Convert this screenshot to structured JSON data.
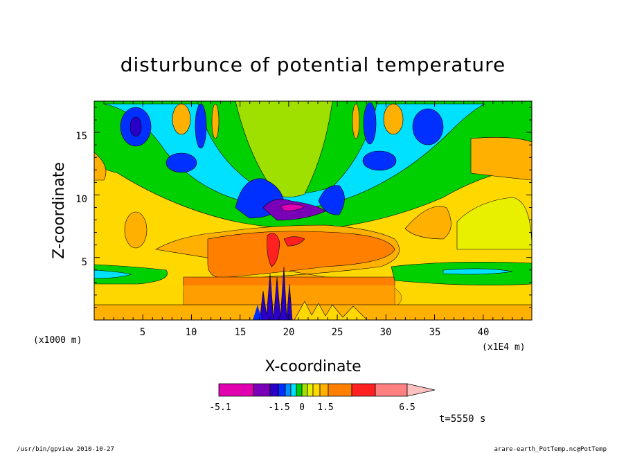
{
  "chart_data": {
    "type": "heatmap",
    "title": "disturbunce of potential temperature",
    "xlabel": "X-coordinate",
    "ylabel": "Z-coordinate",
    "x_unit_left": "(x1000 m)",
    "x_unit_right": "(x1E4 m)",
    "x_ticks": [
      "5",
      "10",
      "15",
      "20",
      "25",
      "30",
      "35",
      "40"
    ],
    "y_ticks": [
      "5",
      "10",
      "15"
    ],
    "xlim": [
      0,
      45
    ],
    "ylim": [
      0,
      17.5
    ],
    "time_label": "t=5550 s",
    "colorbar_labels": [
      "-5.1",
      "-1.5",
      "0",
      "1.5",
      "6.5"
    ],
    "colorbar_colors": [
      "#e000b0",
      "#7a00b8",
      "#2a00c8",
      "#0030ff",
      "#0090ff",
      "#00e0ff",
      "#00d000",
      "#a0e000",
      "#e8f000",
      "#ffd800",
      "#ffb000",
      "#ff8000",
      "#ff2020",
      "#ff8080",
      "#ffc0c0"
    ],
    "levels": {
      "strong_negative": "#2a00c8",
      "negative": "#0030ff",
      "weak_negative": "#00e0ff",
      "near_zero_low": "#00d000",
      "near_zero_high": "#e8f000",
      "weak_positive": "#ffd800",
      "positive": "#ffb000",
      "strong_positive": "#ff8000",
      "max_positive": "#ff2020",
      "min_negative": "#e000b0"
    }
  },
  "footer": {
    "left": "/usr/bin/gpview  2010-10-27",
    "right": "arare-earth_PotTemp.nc@PotTemp"
  }
}
